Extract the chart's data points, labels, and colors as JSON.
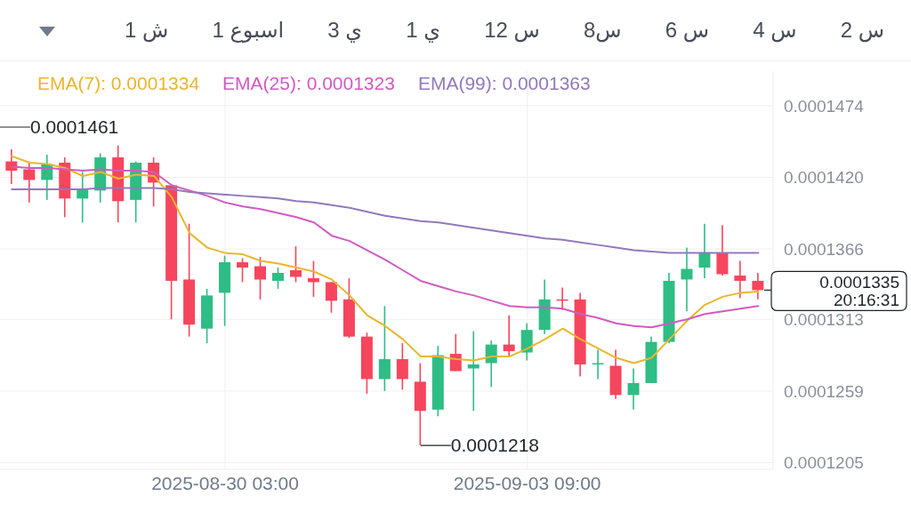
{
  "chart_data": {
    "type": "candlestick",
    "x": [
      "2025-08-27T03:00",
      "2025-08-27T09:00",
      "2025-08-27T15:00",
      "2025-08-27T21:00",
      "2025-08-28T03:00",
      "2025-08-28T09:00",
      "2025-08-28T15:00",
      "2025-08-28T21:00",
      "2025-08-29T03:00",
      "2025-08-29T09:00",
      "2025-08-29T15:00",
      "2025-08-29T21:00",
      "2025-08-30T03:00",
      "2025-08-30T09:00",
      "2025-08-30T15:00",
      "2025-08-30T21:00",
      "2025-08-31T03:00",
      "2025-08-31T09:00",
      "2025-08-31T15:00",
      "2025-08-31T21:00",
      "2025-09-01T03:00",
      "2025-09-01T09:00",
      "2025-09-01T15:00",
      "2025-09-01T21:00",
      "2025-09-02T03:00",
      "2025-09-02T09:00",
      "2025-09-02T15:00",
      "2025-09-02T21:00",
      "2025-09-03T03:00",
      "2025-09-03T09:00",
      "2025-09-03T15:00",
      "2025-09-03T21:00",
      "2025-09-04T03:00",
      "2025-09-04T09:00",
      "2025-09-04T15:00",
      "2025-09-04T21:00",
      "2025-09-05T03:00",
      "2025-09-05T09:00",
      "2025-09-05T15:00",
      "2025-09-05T21:00",
      "2025-09-06T03:00",
      "2025-09-06T09:00",
      "2025-09-06T15:00"
    ],
    "ohlc": [
      [
        0.0001432,
        0.0001441,
        0.0001415,
        0.0001425
      ],
      [
        0.0001426,
        0.0001431,
        0.0001401,
        0.0001418
      ],
      [
        0.0001418,
        0.0001437,
        0.0001403,
        0.000143
      ],
      [
        0.0001431,
        0.0001435,
        0.000139,
        0.0001404
      ],
      [
        0.0001404,
        0.0001424,
        0.0001386,
        0.0001411
      ],
      [
        0.000141,
        0.0001438,
        0.0001401,
        0.0001435
      ],
      [
        0.0001435,
        0.0001444,
        0.0001386,
        0.0001402
      ],
      [
        0.0001403,
        0.0001432,
        0.0001386,
        0.0001431
      ],
      [
        0.0001431,
        0.0001435,
        0.0001398,
        0.0001416
      ],
      [
        0.0001414,
        0.0001415,
        0.0001313,
        0.0001342
      ],
      [
        0.0001343,
        0.0001385,
        0.00013,
        0.0001309
      ],
      [
        0.0001306,
        0.0001336,
        0.0001295,
        0.0001331
      ],
      [
        0.0001333,
        0.0001361,
        0.0001308,
        0.0001356
      ],
      [
        0.0001356,
        0.0001359,
        0.0001341,
        0.0001352
      ],
      [
        0.0001353,
        0.000136,
        0.0001328,
        0.0001343
      ],
      [
        0.0001342,
        0.0001352,
        0.0001336,
        0.0001348
      ],
      [
        0.000135,
        0.0001368,
        0.0001341,
        0.0001345
      ],
      [
        0.0001344,
        0.0001357,
        0.000133,
        0.0001341
      ],
      [
        0.0001341,
        0.0001341,
        0.0001318,
        0.0001327
      ],
      [
        0.0001328,
        0.0001344,
        0.0001299,
        0.00013
      ],
      [
        0.00013,
        0.0001303,
        0.0001257,
        0.0001268
      ],
      [
        0.0001268,
        0.0001323,
        0.0001259,
        0.0001283
      ],
      [
        0.0001283,
        0.0001295,
        0.000126,
        0.0001268
      ],
      [
        0.0001266,
        0.000128,
        0.0001218,
        0.0001244
      ],
      [
        0.0001245,
        0.0001293,
        0.000124,
        0.0001286
      ],
      [
        0.0001287,
        0.0001302,
        0.0001274,
        0.0001274
      ],
      [
        0.0001276,
        0.0001304,
        0.0001244,
        0.0001279
      ],
      [
        0.000128,
        0.0001297,
        0.0001262,
        0.0001294
      ],
      [
        0.0001294,
        0.0001316,
        0.0001285,
        0.0001289
      ],
      [
        0.0001288,
        0.000131,
        0.0001282,
        0.0001305
      ],
      [
        0.0001305,
        0.0001343,
        0.0001302,
        0.0001328
      ],
      [
        0.0001328,
        0.0001337,
        0.000132,
        0.0001327
      ],
      [
        0.0001328,
        0.0001333,
        0.000127,
        0.0001279
      ],
      [
        0.0001279,
        0.000129,
        0.0001268,
        0.000128
      ],
      [
        0.0001278,
        0.000129,
        0.0001253,
        0.0001256
      ],
      [
        0.0001256,
        0.0001276,
        0.0001245,
        0.0001265
      ],
      [
        0.0001265,
        0.00013,
        0.0001265,
        0.0001296
      ],
      [
        0.0001296,
        0.0001348,
        0.0001295,
        0.0001342
      ],
      [
        0.0001343,
        0.0001367,
        0.0001319,
        0.0001351
      ],
      [
        0.0001352,
        0.0001385,
        0.0001344,
        0.0001363
      ],
      [
        0.0001363,
        0.0001384,
        0.0001346,
        0.0001347
      ],
      [
        0.0001346,
        0.0001357,
        0.0001329,
        0.0001342
      ],
      [
        0.0001342,
        0.0001348,
        0.0001328,
        0.0001335
      ]
    ],
    "colors": [
      "#f6465d",
      "#f6465d",
      "#2ebd85",
      "#f6465d",
      "#2ebd85",
      "#2ebd85",
      "#f6465d",
      "#2ebd85",
      "#f6465d",
      "#f6465d",
      "#f6465d",
      "#2ebd85",
      "#2ebd85",
      "#f6465d",
      "#f6465d",
      "#2ebd85",
      "#f6465d",
      "#f6465d",
      "#f6465d",
      "#f6465d",
      "#f6465d",
      "#2ebd85",
      "#f6465d",
      "#f6465d",
      "#2ebd85",
      "#f6465d",
      "#2ebd85",
      "#2ebd85",
      "#f6465d",
      "#2ebd85",
      "#2ebd85",
      "#f6465d",
      "#f6465d",
      "#2ebd85",
      "#f6465d",
      "#2ebd85",
      "#2ebd85",
      "#2ebd85",
      "#2ebd85",
      "#2ebd85",
      "#f6465d",
      "#f6465d",
      "#f6465d"
    ],
    "series": [
      {
        "name": "EMA(7): 0.0001334",
        "type": "line",
        "color": "#e9b62d",
        "values": [
          0.0001436,
          0.0001431,
          0.000143,
          0.0001427,
          0.0001421,
          0.0001424,
          0.0001419,
          0.0001422,
          0.0001421,
          0.0001405,
          0.0001378,
          0.0001367,
          0.0001363,
          0.0001362,
          0.0001357,
          0.0001355,
          0.0001352,
          0.0001349,
          0.0001343,
          0.0001331,
          0.0001316,
          0.0001308,
          0.0001298,
          0.0001285,
          0.0001285,
          0.0001283,
          0.0001282,
          0.0001285,
          0.0001285,
          0.0001291,
          0.0001298,
          0.0001306,
          0.0001298,
          0.0001291,
          0.0001284,
          0.000128,
          0.0001284,
          0.0001298,
          0.0001312,
          0.0001324,
          0.000133,
          0.0001333,
          0.0001334
        ]
      },
      {
        "name": "EMA(25): 0.0001323",
        "type": "line",
        "color": "#d15bc2",
        "values": [
          0.0001428,
          0.0001427,
          0.0001427,
          0.0001426,
          0.0001425,
          0.0001426,
          0.0001425,
          0.0001425,
          0.0001424,
          0.0001414,
          0.000141,
          0.0001406,
          0.0001401,
          0.0001398,
          0.0001396,
          0.0001393,
          0.000139,
          0.0001386,
          0.0001376,
          0.0001372,
          0.0001365,
          0.0001358,
          0.000135,
          0.0001342,
          0.0001338,
          0.0001334,
          0.0001331,
          0.0001327,
          0.0001323,
          0.0001322,
          0.0001322,
          0.0001321,
          0.0001317,
          0.0001314,
          0.000131,
          0.0001308,
          0.0001307,
          0.000131,
          0.0001313,
          0.0001317,
          0.0001319,
          0.0001321,
          0.0001323
        ]
      },
      {
        "name": "EMA(99): 0.0001363",
        "type": "line",
        "color": "#9279bd",
        "values": [
          0.0001411,
          0.0001411,
          0.0001411,
          0.0001411,
          0.0001411,
          0.0001412,
          0.0001412,
          0.0001412,
          0.0001412,
          0.0001411,
          0.0001409,
          0.0001408,
          0.0001407,
          0.0001406,
          0.0001405,
          0.0001404,
          0.0001402,
          0.0001401,
          0.0001399,
          0.0001397,
          0.0001394,
          0.0001391,
          0.0001389,
          0.0001387,
          0.0001386,
          0.0001384,
          0.0001382,
          0.000138,
          0.0001378,
          0.0001376,
          0.0001374,
          0.0001373,
          0.0001371,
          0.0001369,
          0.0001367,
          0.0001365,
          0.0001364,
          0.0001363,
          0.0001363,
          0.0001363,
          0.0001363,
          0.0001363,
          0.0001363
        ]
      }
    ],
    "xlim": [
      "2025-08-26T23:00",
      "2025-09-06T20:00"
    ],
    "xticks": [
      {
        "value": "2025-08-30T03:00",
        "label": "2025-08-30 03:00"
      },
      {
        "value": "2025-09-03T09:00",
        "label": "2025-09-03 09:00"
      }
    ],
    "ylim": [
      0.00012,
      0.00015
    ],
    "yticks": [
      0.0001205,
      0.0001259,
      0.0001313,
      0.0001366,
      {
        "value": 0.000142,
        "label": "0.0001420"
      },
      0.0001474
    ],
    "grid": true,
    "legend": "top left",
    "annotations": [
      "1 ش",
      "1 اسبوع",
      "3 ي",
      "1 ي",
      "12 س",
      "8س",
      "6 س",
      "4 س",
      "2 س",
      "20:16:31",
      "0.0001461",
      {
        "text": "0.0001218",
        "x": "2025-09-01T21:00",
        "y": 0.0001218
      },
      "0.0001335"
    ]
  }
}
